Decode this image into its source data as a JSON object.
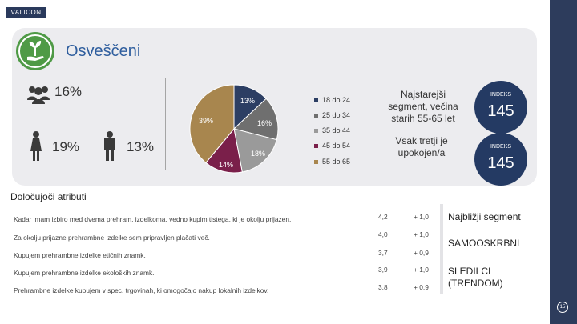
{
  "logo": {
    "text": "VALICON"
  },
  "header": {
    "title": "Osveščeni"
  },
  "demographics": {
    "total_pct": "16%",
    "female_pct": "19%",
    "male_pct": "13%"
  },
  "chart_data": {
    "type": "pie",
    "title": "",
    "categories": [
      "18 do 24",
      "25 do 34",
      "35 do 44",
      "45 do 54",
      "55 do 65"
    ],
    "values": [
      13,
      16,
      18,
      14,
      39
    ],
    "labels": [
      "13%",
      "16%",
      "18%",
      "14%",
      "39%"
    ],
    "colors": [
      "#2c3e63",
      "#6f6f6f",
      "#9a9a9a",
      "#7a1f4a",
      "#a8864e"
    ],
    "legend_position": "right"
  },
  "segments": {
    "oldest_text": "Najstarejši segment, večina starih 55-65 let",
    "retired_text": "Vsak tretji je upokojen/a",
    "index1_label": "INDEKS",
    "index1_value": "145",
    "index2_label": "INDEKS",
    "index2_value": "145"
  },
  "attributes": {
    "title": "Določujoči atributi",
    "rows": [
      {
        "text": "Kadar imam izbiro med dvema prehram. izdelkoma, vedno kupim tistega, ki je okolju prijazen.",
        "score": "4,2",
        "delta": "+ 1,0"
      },
      {
        "text": "Za okolju prijazne prehrambne izdelke sem pripravljen plačati več.",
        "score": "4,0",
        "delta": "+ 1,0"
      },
      {
        "text": "Kupujem prehrambne izdelke etičnih znamk.",
        "score": "3,7",
        "delta": "+ 0,9"
      },
      {
        "text": "Kupujem prehrambne izdelke ekoloških znamk.",
        "score": "3,9",
        "delta": "+ 1,0"
      },
      {
        "text": "Prehrambne izdelke kupujem v spec. trgovinah, ki omogočajo nakup lokalnih izdelkov.",
        "score": "3,8",
        "delta": "+ 0,9"
      }
    ]
  },
  "nearest": {
    "label": "Najbližji segment",
    "first": "SAMOOSKRBNI",
    "second_line1": "SLEDILCI",
    "second_line2": "(TRENDOM)"
  },
  "page": {
    "number": "15"
  }
}
